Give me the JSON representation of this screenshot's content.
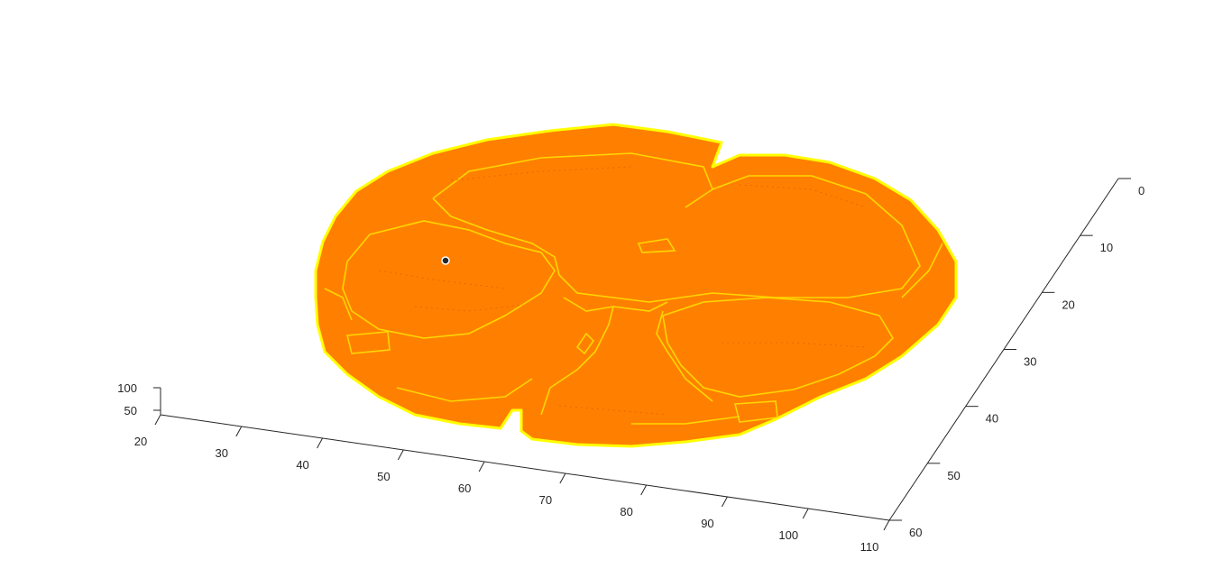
{
  "chart_data": {
    "type": "3d-surface",
    "title": "",
    "xlabel": "",
    "ylabel": "",
    "zlabel": "",
    "x_axis": {
      "ticks": [
        20,
        30,
        40,
        50,
        60,
        70,
        80,
        90,
        100,
        110
      ],
      "range": [
        20,
        110
      ]
    },
    "y_axis": {
      "ticks": [
        0,
        10,
        20,
        30,
        40,
        50,
        60
      ],
      "range": [
        0,
        60
      ]
    },
    "z_axis": {
      "ticks": [
        50,
        100
      ],
      "range": [
        40,
        100
      ]
    },
    "grid": false,
    "legend": "none",
    "surface_color": "#ff8000",
    "edge_color": "#ffff00",
    "marker_color": "#262626"
  }
}
